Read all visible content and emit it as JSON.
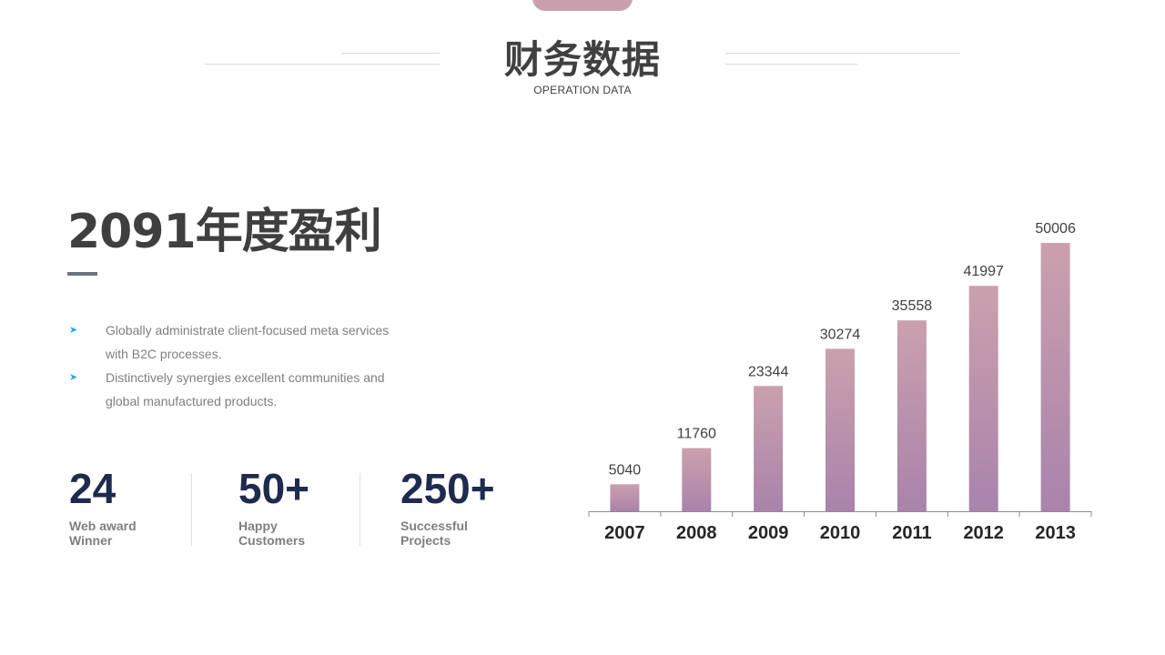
{
  "header": {
    "title": "财务数据",
    "subtitle": "OPERATION DATA"
  },
  "main": {
    "heading": "2091年度盈利",
    "bullets": [
      {
        "icon": "arrow-bullet-icon",
        "text": "Globally administrate client-focused meta services with B2C processes."
      },
      {
        "icon": "arrow-bullet-icon",
        "text": "Distinctively synergies excellent communities and global manufactured products."
      }
    ],
    "stats": [
      {
        "value": "24",
        "label": "Web award Winner"
      },
      {
        "value": "50+",
        "label": "Happy Customers"
      },
      {
        "value": "250+",
        "label": "Successful Projects"
      }
    ]
  },
  "colors": {
    "accent": "#c9a1ae",
    "bar_top": "#cba0ad",
    "bar_bottom": "#a983ac",
    "stat_number": "#1f2a4f",
    "bullet_arrow": "#2aa8d8"
  },
  "chart_data": {
    "type": "bar",
    "categories": [
      "2007",
      "2008",
      "2009",
      "2010",
      "2011",
      "2012",
      "2013"
    ],
    "values": [
      5040,
      11760,
      23344,
      30274,
      35558,
      41997,
      50006
    ],
    "title": "",
    "xlabel": "",
    "ylabel": "",
    "ylim": [
      0,
      50006
    ],
    "grid": false,
    "legend": "none",
    "data_labels": true
  }
}
